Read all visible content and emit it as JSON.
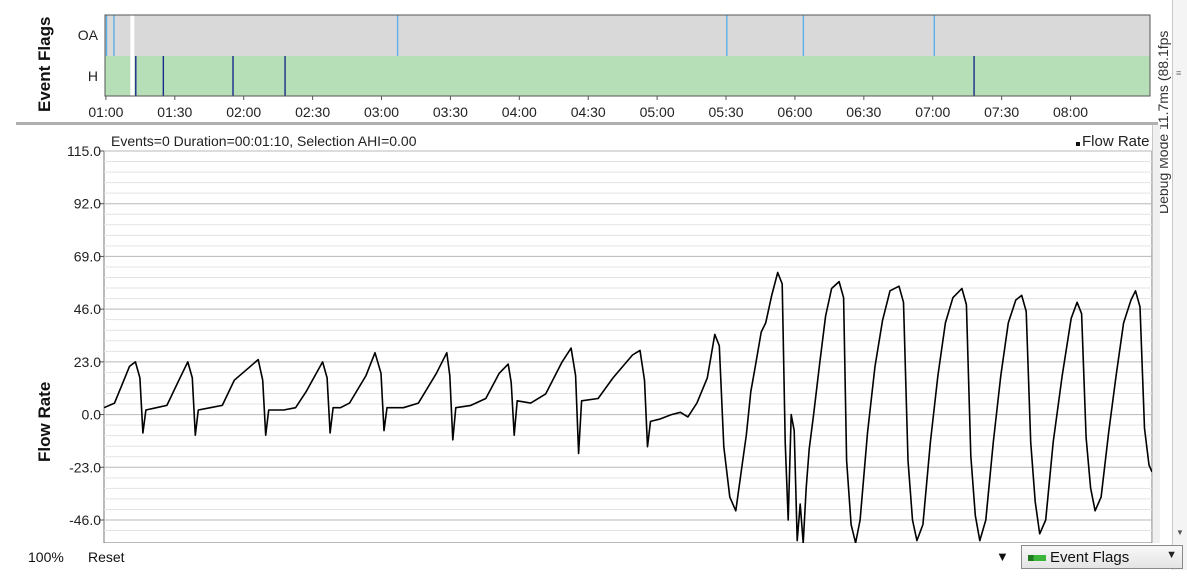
{
  "event_flags_panel": {
    "title": "Event Flags",
    "rows": [
      {
        "label": "OA",
        "color": "#d9d9d9",
        "marker_color": "#5ab0e8",
        "markers": [
          "01:00:16",
          "01:03:30",
          "03:07:00",
          "05:30:20",
          "06:03:40",
          "07:00:40"
        ]
      },
      {
        "label": "H",
        "color": "#b7dfb7",
        "marker_color": "#1a2a8a",
        "markers": [
          "01:11:30",
          "01:13:00",
          "01:25:00",
          "01:55:20",
          "02:18:00",
          "07:18:00"
        ]
      }
    ],
    "selection_start": "01:11:30",
    "x_ticks": [
      "01:00",
      "01:30",
      "02:00",
      "02:30",
      "03:00",
      "03:30",
      "04:00",
      "04:30",
      "05:00",
      "05:30",
      "06:00",
      "06:30",
      "07:00",
      "07:30",
      "08:00"
    ]
  },
  "side_text": "Debug Mode 11.7ms (88.1fps",
  "graph": {
    "status": "Events=0 Duration=00:01:10, Selection AHI=0.00",
    "legend": "Flow Rate"
  },
  "chart_data": {
    "type": "line",
    "ylabel": "Flow Rate",
    "y_ticks": [
      "115.0",
      "92.0",
      "69.0",
      "46.0",
      "23.0",
      "0.0",
      "-23.0",
      "-46.0"
    ],
    "ylim": [
      -55,
      115
    ],
    "xlim": [
      0,
      70
    ],
    "x_unit": "seconds into selection",
    "grid": true,
    "series": [
      {
        "name": "Flow Rate",
        "color": "#000000",
        "points": [
          [
            0.0,
            3
          ],
          [
            0.7,
            5
          ],
          [
            1.2,
            13
          ],
          [
            1.7,
            21
          ],
          [
            2.1,
            23
          ],
          [
            2.4,
            16
          ],
          [
            2.6,
            -8
          ],
          [
            2.8,
            2
          ],
          [
            3.5,
            3
          ],
          [
            4.2,
            4
          ],
          [
            5.0,
            15
          ],
          [
            5.6,
            23
          ],
          [
            5.9,
            16
          ],
          [
            6.1,
            -9
          ],
          [
            6.3,
            2
          ],
          [
            7.1,
            3
          ],
          [
            7.9,
            4
          ],
          [
            8.7,
            15
          ],
          [
            9.6,
            20
          ],
          [
            10.3,
            24
          ],
          [
            10.6,
            15
          ],
          [
            10.8,
            -9
          ],
          [
            11.0,
            2
          ],
          [
            12.0,
            2
          ],
          [
            12.8,
            3
          ],
          [
            13.5,
            10
          ],
          [
            14.6,
            23
          ],
          [
            14.9,
            16
          ],
          [
            15.1,
            -8
          ],
          [
            15.3,
            3
          ],
          [
            15.8,
            3
          ],
          [
            16.4,
            5
          ],
          [
            17.5,
            17
          ],
          [
            18.1,
            27
          ],
          [
            18.5,
            18
          ],
          [
            18.7,
            -7
          ],
          [
            18.9,
            3
          ],
          [
            20.0,
            3
          ],
          [
            21.0,
            5
          ],
          [
            22.2,
            18
          ],
          [
            22.9,
            27
          ],
          [
            23.1,
            17
          ],
          [
            23.3,
            -11
          ],
          [
            23.5,
            3
          ],
          [
            24.5,
            4
          ],
          [
            25.5,
            7
          ],
          [
            26.4,
            18
          ],
          [
            27.0,
            22
          ],
          [
            27.2,
            14
          ],
          [
            27.4,
            -9
          ],
          [
            27.6,
            6
          ],
          [
            28.5,
            5
          ],
          [
            29.5,
            9
          ],
          [
            30.6,
            23
          ],
          [
            31.2,
            29
          ],
          [
            31.5,
            17
          ],
          [
            31.7,
            -17
          ],
          [
            31.9,
            6
          ],
          [
            33.0,
            7
          ],
          [
            34.0,
            16
          ],
          [
            35.3,
            26
          ],
          [
            35.8,
            28
          ],
          [
            36.1,
            15
          ],
          [
            36.3,
            -14
          ],
          [
            36.5,
            -3
          ],
          [
            37.1,
            -2
          ],
          [
            37.9,
            0
          ],
          [
            38.5,
            1
          ],
          [
            39.0,
            -1
          ],
          [
            39.6,
            5
          ],
          [
            40.3,
            16
          ],
          [
            40.8,
            35
          ],
          [
            41.1,
            30
          ],
          [
            41.4,
            -14
          ],
          [
            41.8,
            -36
          ],
          [
            42.2,
            -42
          ],
          [
            42.6,
            -23
          ],
          [
            42.9,
            -9
          ],
          [
            43.2,
            10
          ],
          [
            43.5,
            21
          ],
          [
            43.9,
            36
          ],
          [
            44.2,
            40
          ],
          [
            44.6,
            52
          ],
          [
            45.0,
            62
          ],
          [
            45.3,
            57
          ],
          [
            45.5,
            -12
          ],
          [
            45.7,
            -46
          ],
          [
            45.9,
            0
          ],
          [
            46.1,
            -7
          ],
          [
            46.3,
            -55
          ],
          [
            46.5,
            -39
          ],
          [
            46.7,
            -56
          ],
          [
            46.9,
            -32
          ],
          [
            47.1,
            -15
          ],
          [
            47.4,
            0
          ],
          [
            47.8,
            22
          ],
          [
            48.2,
            43
          ],
          [
            48.6,
            55
          ],
          [
            49.1,
            58
          ],
          [
            49.4,
            51
          ],
          [
            49.6,
            -20
          ],
          [
            49.9,
            -48
          ],
          [
            50.2,
            -56
          ],
          [
            50.5,
            -46
          ],
          [
            51.0,
            -8
          ],
          [
            51.5,
            21
          ],
          [
            52.0,
            41
          ],
          [
            52.5,
            54
          ],
          [
            53.1,
            56
          ],
          [
            53.4,
            49
          ],
          [
            53.7,
            -20
          ],
          [
            54.0,
            -46
          ],
          [
            54.3,
            -55
          ],
          [
            54.7,
            -48
          ],
          [
            55.2,
            -12
          ],
          [
            55.7,
            17
          ],
          [
            56.2,
            40
          ],
          [
            56.7,
            51
          ],
          [
            57.3,
            55
          ],
          [
            57.6,
            48
          ],
          [
            57.9,
            -18
          ],
          [
            58.2,
            -44
          ],
          [
            58.5,
            -55
          ],
          [
            58.9,
            -46
          ],
          [
            59.4,
            -12
          ],
          [
            59.9,
            17
          ],
          [
            60.4,
            40
          ],
          [
            60.9,
            50
          ],
          [
            61.3,
            52
          ],
          [
            61.6,
            45
          ],
          [
            61.9,
            -12
          ],
          [
            62.2,
            -38
          ],
          [
            62.5,
            -52
          ],
          [
            62.9,
            -46
          ],
          [
            63.4,
            -12
          ],
          [
            64.0,
            17
          ],
          [
            64.6,
            42
          ],
          [
            65.0,
            49
          ],
          [
            65.3,
            44
          ],
          [
            65.6,
            -10
          ],
          [
            65.9,
            -32
          ],
          [
            66.2,
            -42
          ],
          [
            66.6,
            -36
          ],
          [
            67.1,
            -8
          ],
          [
            67.6,
            17
          ],
          [
            68.1,
            40
          ],
          [
            68.6,
            50
          ],
          [
            68.9,
            54
          ],
          [
            69.2,
            47
          ],
          [
            69.5,
            -6
          ],
          [
            69.8,
            -22
          ],
          [
            70.0,
            -25
          ]
        ]
      }
    ]
  },
  "bottom_bar": {
    "zoom": "100%",
    "reset": "Reset",
    "dropdown": "Event Flags"
  }
}
